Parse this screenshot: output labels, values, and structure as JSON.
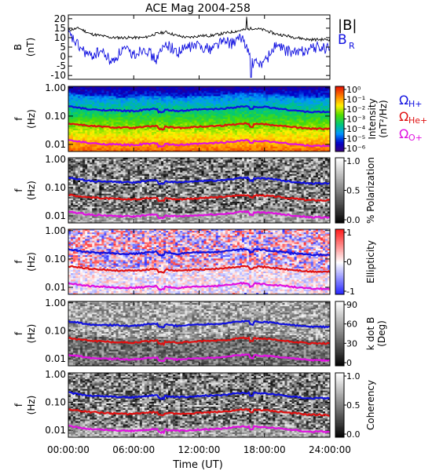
{
  "title": "ACE Mag 2004-258",
  "xlabel": "Time (UT)",
  "x_ticks": [
    "00:00:00",
    "06:00:00",
    "12:00:00",
    "18:00:00",
    "24:00:00"
  ],
  "freq_ticks": [
    "1.00",
    "0.10",
    "0.01"
  ],
  "freq_ylabel": [
    "f",
    "(Hz)"
  ],
  "gyro_labels": {
    "H": {
      "symbol": "Ω",
      "sub": "H+",
      "color": "#1010e0"
    },
    "He": {
      "symbol": "Ω",
      "sub": "He+",
      "color": "#e01010"
    },
    "O": {
      "symbol": "Ω",
      "sub": "O+",
      "color": "#e010e0"
    }
  },
  "chart_data": [
    {
      "panel": "field",
      "type": "line",
      "ylabel": [
        "B",
        "(nT)"
      ],
      "ylim": [
        -12,
        22
      ],
      "y_ticks": [
        "20",
        "15",
        "10",
        "5",
        "0",
        "-5",
        "-10"
      ],
      "x_range_hours": [
        0,
        24
      ],
      "series": [
        {
          "name": "|B|",
          "color": "#000000",
          "x": [
            0,
            1,
            2,
            3,
            4,
            5,
            6,
            7,
            8,
            9,
            10,
            11,
            12,
            13,
            14,
            15,
            16,
            17,
            18,
            19,
            20,
            21,
            22,
            23,
            24
          ],
          "y": [
            14,
            15,
            12,
            11,
            10,
            10,
            10,
            10,
            12,
            13,
            11,
            10,
            11,
            11,
            12,
            13,
            14,
            15,
            14,
            12,
            11,
            10,
            9,
            9,
            9
          ]
        },
        {
          "name": "BR",
          "label": "B",
          "label_sub": "R",
          "color": "#1010e0",
          "x": [
            0,
            1,
            2,
            3,
            4,
            5,
            6,
            7,
            8,
            9,
            10,
            11,
            12,
            13,
            14,
            15,
            16,
            17,
            18,
            19,
            20,
            21,
            22,
            23,
            24
          ],
          "y": [
            12,
            5,
            0,
            3,
            -3,
            4,
            1,
            5,
            -2,
            7,
            2,
            5,
            6,
            4,
            8,
            7,
            10,
            -4,
            -3,
            6,
            3,
            2,
            4,
            5,
            4
          ]
        }
      ]
    },
    {
      "panel": "intensity",
      "type": "heatmap",
      "colorbar": {
        "label": [
          "Intensity",
          "(nT²/Hz)"
        ],
        "ticks": [
          "10⁰",
          "10⁻¹",
          "10⁻²",
          "10⁻³",
          "10⁻⁴",
          "10⁻⁵",
          "10⁻⁶"
        ],
        "scale": "spectral"
      }
    },
    {
      "panel": "polarization",
      "type": "heatmap",
      "colorbar": {
        "label": [
          "% Polarization"
        ],
        "ticks": [
          "1.0",
          "0.5",
          "0.0"
        ],
        "scale": "gray"
      }
    },
    {
      "panel": "ellipticity",
      "type": "heatmap",
      "colorbar": {
        "label": [
          "Ellipticity"
        ],
        "ticks": [
          "1",
          "0",
          "-1"
        ],
        "scale": "bwr"
      }
    },
    {
      "panel": "kdotb",
      "type": "heatmap",
      "colorbar": {
        "label": [
          "k dot B",
          "(Deg)"
        ],
        "ticks": [
          "90",
          "60",
          "30",
          "0"
        ],
        "scale": "gray"
      }
    },
    {
      "panel": "coherency",
      "type": "heatmap",
      "colorbar": {
        "label": [
          "Coherency"
        ],
        "ticks": [
          "1.0",
          "0.5",
          "0.0"
        ],
        "scale": "gray"
      }
    }
  ],
  "gyrofrequency_hz": {
    "x": [
      0,
      2,
      4,
      6,
      8,
      10,
      12,
      14,
      15,
      16,
      18,
      20,
      22,
      24
    ],
    "H": [
      0.22,
      0.17,
      0.16,
      0.15,
      0.18,
      0.15,
      0.17,
      0.18,
      0.2,
      0.22,
      0.21,
      0.17,
      0.14,
      0.14
    ],
    "He": [
      0.055,
      0.045,
      0.04,
      0.038,
      0.045,
      0.038,
      0.042,
      0.046,
      0.05,
      0.055,
      0.052,
      0.043,
      0.036,
      0.035
    ],
    "O": [
      0.014,
      0.011,
      0.01,
      0.0095,
      0.011,
      0.0095,
      0.0105,
      0.0115,
      0.0125,
      0.014,
      0.013,
      0.011,
      0.009,
      0.0088
    ]
  }
}
